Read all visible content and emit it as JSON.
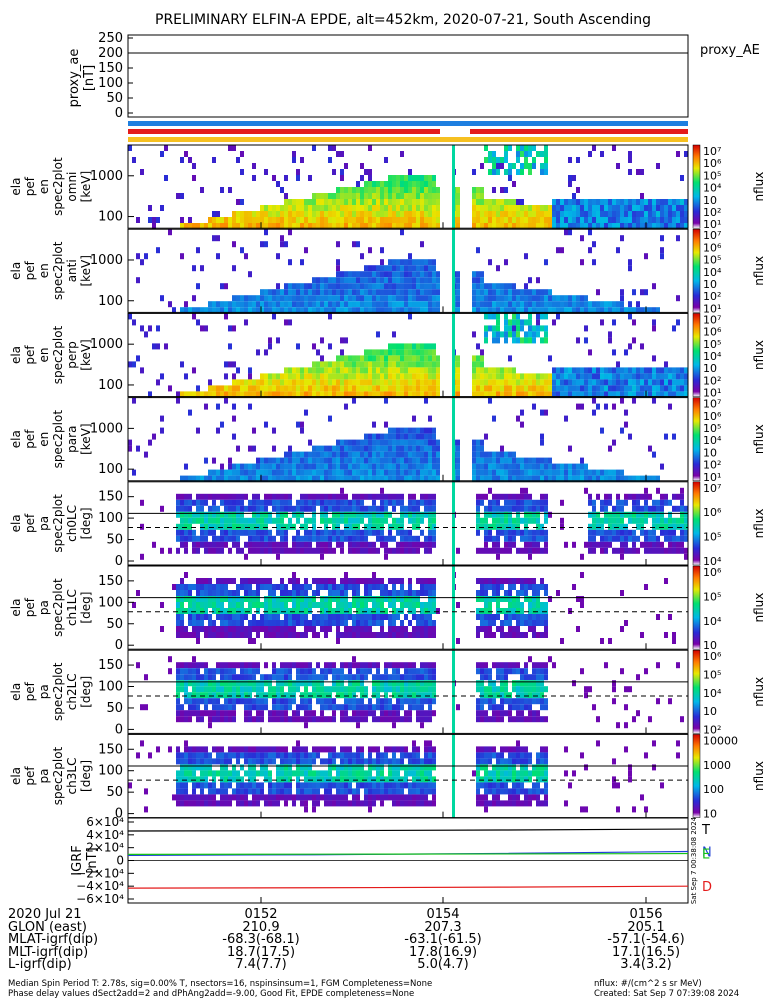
{
  "title": "PRELIMINARY ELFIN-A EPDE, alt=452km, 2020-07-21, South Ascending",
  "proxy_ae": {
    "ylabel": [
      "proxy_ae",
      "[nT]"
    ],
    "ticks": [
      "250",
      "200",
      "150",
      "100",
      "50",
      "0"
    ],
    "legend": "proxy_AE",
    "value": 200
  },
  "panels": [
    {
      "ylabel": [
        "ela",
        "pef",
        "en",
        "spec2plot",
        "omni",
        "[keV]"
      ],
      "yticks": [
        "1000",
        "100"
      ],
      "cbar_ticks": [
        "10⁷",
        "10⁶",
        "10⁵",
        "10⁴",
        "10⁳",
        "10²",
        "10¹"
      ],
      "cbar_label": "nflux"
    },
    {
      "ylabel": [
        "ela",
        "pef",
        "en",
        "spec2plot",
        "anti",
        "[keV]"
      ],
      "yticks": [
        "1000",
        "100"
      ],
      "cbar_ticks": [
        "10⁷",
        "10⁶",
        "10⁵",
        "10⁴",
        "10⁳",
        "10²",
        "10¹"
      ],
      "cbar_label": "nflux"
    },
    {
      "ylabel": [
        "ela",
        "pef",
        "en",
        "spec2plot",
        "perp",
        "[keV]"
      ],
      "yticks": [
        "1000",
        "100"
      ],
      "cbar_ticks": [
        "10⁷",
        "10⁶",
        "10⁵",
        "10⁴",
        "10⁳",
        "10²",
        "10¹"
      ],
      "cbar_label": "nflux"
    },
    {
      "ylabel": [
        "ela",
        "pef",
        "en",
        "spec2plot",
        "para",
        "[keV]"
      ],
      "yticks": [
        "1000",
        "100"
      ],
      "cbar_ticks": [
        "10⁷",
        "10⁶",
        "10⁵",
        "10⁴",
        "10⁳",
        "10²",
        "10¹"
      ],
      "cbar_label": "nflux"
    },
    {
      "ylabel": [
        "ela",
        "pef",
        "pa",
        "spec2plot",
        "ch0LC",
        "[deg]"
      ],
      "yticks": [
        "150",
        "100",
        "50",
        "0"
      ],
      "cbar_ticks": [
        "10⁷",
        "10⁶",
        "10⁵",
        "10⁴"
      ],
      "cbar_label": "nflux"
    },
    {
      "ylabel": [
        "ela",
        "pef",
        "pa",
        "spec2plot",
        "ch1LC",
        "[deg]"
      ],
      "yticks": [
        "150",
        "100",
        "50",
        "0"
      ],
      "cbar_ticks": [
        "10⁶",
        "10⁵",
        "10⁴",
        "10⁳"
      ],
      "cbar_label": "nflux"
    },
    {
      "ylabel": [
        "ela",
        "pef",
        "pa",
        "spec2plot",
        "ch2LC",
        "[deg]"
      ],
      "yticks": [
        "150",
        "100",
        "50",
        "0"
      ],
      "cbar_ticks": [
        "10⁶",
        "10⁵",
        "10⁴",
        "10⁳",
        "10²"
      ],
      "cbar_label": "nflux"
    },
    {
      "ylabel": [
        "ela",
        "pef",
        "pa",
        "spec2plot",
        "ch3LC",
        "[deg]"
      ],
      "yticks": [
        "150",
        "100",
        "50",
        "0"
      ],
      "cbar_ticks": [
        "10000",
        "1000",
        "100",
        "10"
      ],
      "cbar_label": "nflux"
    }
  ],
  "igrf": {
    "ylabel": [
      "IGRF",
      "[nT]"
    ],
    "ticks": [
      "6×10⁴",
      "4×10⁴",
      "2×10⁴",
      "0",
      "−2×10⁴",
      "−4×10⁴",
      "−6×10⁴"
    ],
    "legend": [
      "T",
      "N",
      "E",
      "D"
    ],
    "colors": {
      "T": "#000000",
      "N": "#1f3fd6",
      "E": "#16c316",
      "D": "#e41b1b"
    },
    "stamp": "Sat Sep  7 00:38:08 2024"
  },
  "chart_data": {
    "type": "heatmap",
    "title": "PRELIMINARY ELFIN-A EPDE, alt=452km, 2020-07-21, South Ascending",
    "x_ticks": [
      "0152",
      "0154",
      "0156"
    ],
    "proxy_ae": {
      "level": 200,
      "ylim": [
        0,
        250
      ]
    },
    "igrf_series": [
      {
        "name": "T",
        "values": [
          46000,
          46500,
          47500,
          49000
        ]
      },
      {
        "name": "N",
        "values": [
          8000,
          9000,
          11000,
          14000
        ]
      },
      {
        "name": "E",
        "values": [
          9500,
          9800,
          10200,
          10800
        ]
      },
      {
        "name": "D",
        "values": [
          -43000,
          -42500,
          -41500,
          -40000
        ]
      }
    ],
    "igrf_ylim": [
      -60000,
      60000
    ]
  },
  "orbit": {
    "rows": [
      {
        "label": "2020 Jul 21",
        "values": [
          "0152",
          "0154",
          "0156"
        ]
      },
      {
        "label": "GLON (east)",
        "values": [
          "210.9",
          "207.3",
          "205.1"
        ]
      },
      {
        "label": "MLAT-igrf(dip)",
        "values": [
          "-68.3(-68.1)",
          "-63.1(-61.5)",
          "-57.1(-54.6)"
        ]
      },
      {
        "label": "MLT-igrf(dip)",
        "values": [
          "18.7(17.5)",
          "17.8(16.9)",
          "17.1(16.5)"
        ]
      },
      {
        "label": "L-igrf(dip)",
        "values": [
          "7.4(7.7)",
          "5.0(4.7)",
          "3.4(3.2)"
        ]
      }
    ]
  },
  "footer": {
    "line1": "Median Spin Period T: 2.78s, sig=0.00% T, nsectors=16, nspinsinsum=1, FGM Completeness=None",
    "line2": "Phase delay values dSect2add=2 and dPhAng2add=-9.00, Good Fit, EPDE completeness=None",
    "units": "nflux: #/(cm^2 s sr MeV)",
    "created": "Created: Sat Sep  7 07:39:08 2024"
  }
}
